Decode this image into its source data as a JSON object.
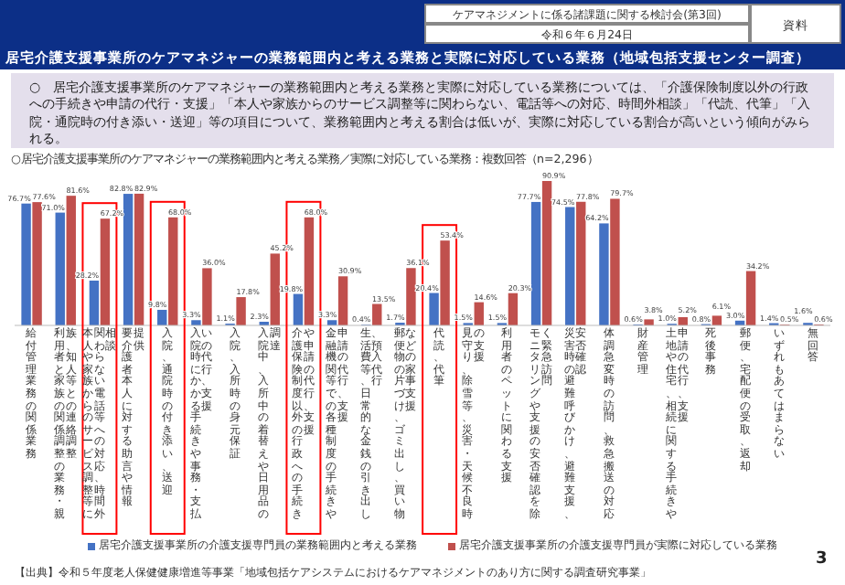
{
  "chart_data": {
    "type": "bar",
    "title": "居宅介護支援事業所のケアマネジャーの業務範囲内と考える業務と実際に対応している業務（地域包括支援センター調査）",
    "subtitle": "○　居宅介護支援事業所のケアマネジャーの業務範囲内と考える業務と実際に対応している業務については、「介護保険制度以外の行政への手続きや申請の代行・支援」「本人や家族からのサービス調整等に関わらない、電話等への対応、時間外相談」「代読、代筆」「入院・通院時の付き添い・送迎」等の項目について、業務範囲内と考える割合は低いが、実際に対応している割合が高いという傾向がみられる。",
    "categories": [
      "給付管理業務の関係業務",
      "利用者と家族の関係調整の業務・親族、知人等との連絡調整",
      "本人や家族からのサービス調整等に関わらない電話等への対応、時間外相談",
      "要介護者本人に対する助言や情報提供",
      "入院、通院時の付き添い、送迎",
      "入院時にかかる手続きや事務・支払いの代行、支援",
      "入院、入所時の身元保証",
      "入院中、入所中の着替えや日用品の調達",
      "介護保険制度以外の行政への手続きや申請の代行、支援",
      "金融機関等での各種制度の手続きや申請の代行、支援",
      "生活費等、日常的な金銭の引き出し、預入代行",
      "郵便物の片づけ、ゴミ出し、買い物などの家事支援",
      "代読、代筆",
      "見守り、除雪等、災害・天候不良時の支援",
      "利用者のペットに関わる支援",
      "モニタリングや支援の安否確認を除く緊急訪問",
      "災害時の避難呼びかけ、避難支援、安否確認",
      "体調急変時の訪問、救急搬送の対応",
      "財産管理",
      "土地や住宅、相続に関する手続きや申請の代行、支援",
      "死後事務",
      "郵便、宅配便の受取、返却",
      "いずれもあてはまらない",
      "無回答"
    ],
    "series": [
      {
        "name": "居宅介護支援事業所の介護支援専門員の業務範囲内と考える業務",
        "color": "#4472c4",
        "values": [
          76.7,
          71.0,
          28.2,
          82.8,
          9.8,
          3.3,
          1.1,
          2.3,
          19.8,
          3.3,
          0.4,
          1.7,
          20.4,
          1.5,
          1.5,
          77.7,
          74.5,
          64.2,
          0.6,
          1.0,
          0.8,
          3.0,
          1.4,
          1.6
        ],
        "value_labels": [
          "76.7%",
          "71.0%",
          "28.2%",
          "82.8%",
          "9.8%",
          "3.3%",
          "1.1%",
          "2.3%",
          "19.8%",
          "3.3%",
          "0.4%",
          "1.7%",
          "20.4%",
          "1.5%",
          "1.5%",
          "77.7%",
          "74.5%",
          "64.2%",
          "0.6%",
          "1.0%",
          "0.8%",
          "3.0%",
          "1.4%",
          "1.6%"
        ]
      },
      {
        "name": "居宅介護支援事業所の介護支援専門員が実際に対応している業務",
        "color": "#c0504d",
        "values": [
          77.6,
          81.6,
          67.2,
          82.9,
          68.0,
          36.0,
          17.8,
          45.2,
          68.0,
          30.9,
          13.5,
          36.1,
          53.4,
          14.6,
          20.3,
          90.9,
          77.8,
          79.7,
          3.8,
          5.2,
          6.1,
          34.2,
          0.5,
          0.6
        ],
        "value_labels": [
          "77.6%",
          "81.6%",
          "67.2%",
          "82.9%",
          "68.0%",
          "36.0%",
          "17.8%",
          "45.2%",
          "68.0%",
          "30.9%",
          "13.5%",
          "36.1%",
          "53.4%",
          "14.6%",
          "20.3%",
          "90.9%",
          "77.8%",
          "79.7%",
          "3.8%",
          "5.2%",
          "6.1%",
          "34.2%",
          "0.5%",
          "0.6%"
        ]
      }
    ],
    "legend": "bottom",
    "annotations": [
      "ケアマネジメントに係る諸課題に関する検討会(第3回)",
      "令和６年６月24日",
      "資料",
      "○居宅介護支援事業所のケアマネジャーの業務範囲内と考える業務／実際に対応している業務：複数回答（n=2,296）",
      "【出典】令和５年度老人保健健康増進等事業「地域包括ケアシステムにおけるケアマネジメントのあり方に関する調査研究事業」",
      "3"
    ]
  }
}
